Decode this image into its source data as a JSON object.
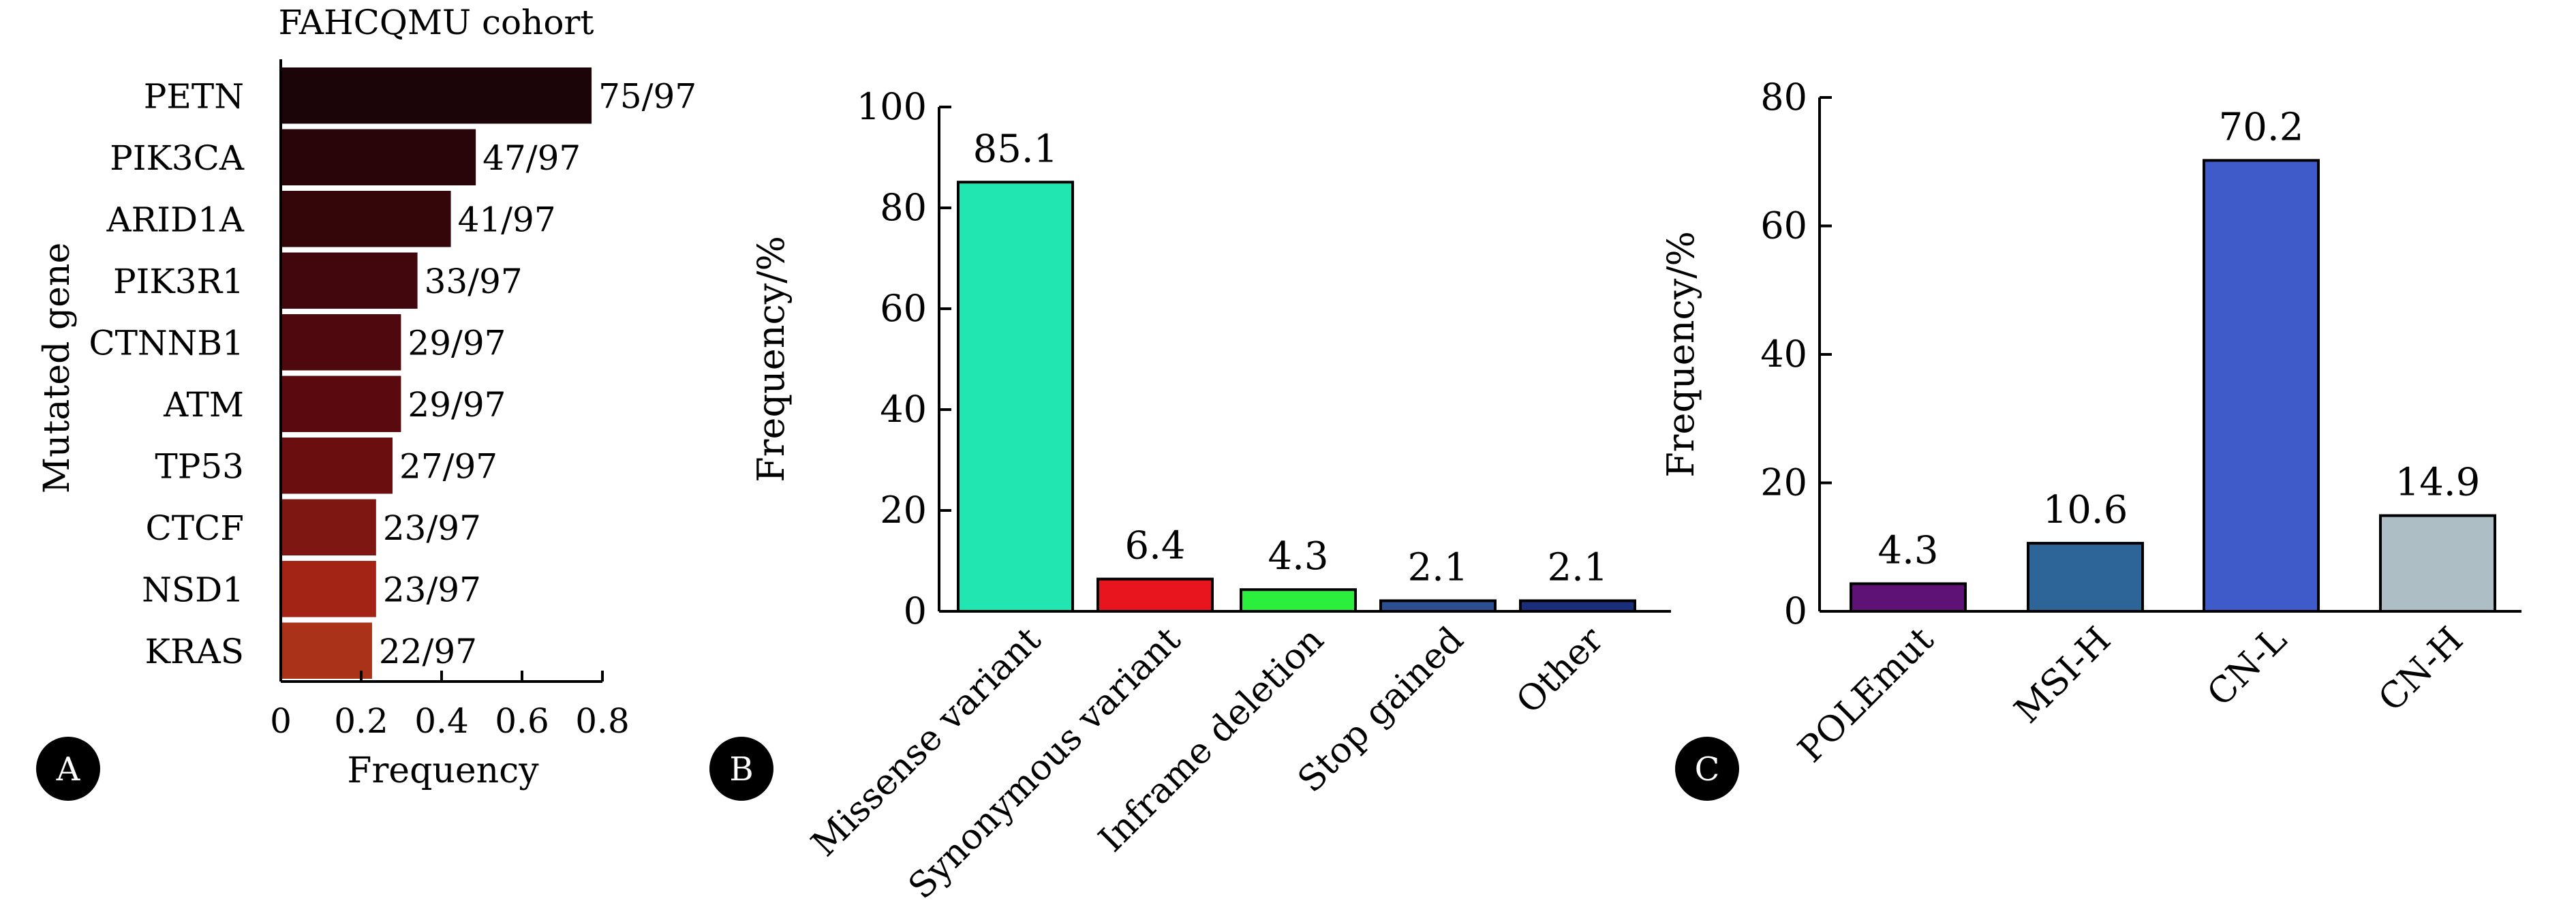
{
  "chart_data": [
    {
      "panel": "A",
      "type": "bar",
      "orientation": "horizontal",
      "title": "FAHCQMU cohort",
      "xlabel": "Frequency",
      "ylabel": "Mutated gene",
      "categories": [
        "PETN",
        "PIK3CA",
        "ARID1A",
        "PIK3R1",
        "CTNNB1",
        "ATM",
        "TP53",
        "CTCF",
        "NSD1",
        "KRAS"
      ],
      "values": [
        0.773,
        0.485,
        0.423,
        0.34,
        0.299,
        0.299,
        0.278,
        0.237,
        0.237,
        0.227
      ],
      "data_labels": [
        "75/97",
        "47/97",
        "41/97",
        "33/97",
        "29/97",
        "29/97",
        "27/97",
        "23/97",
        "23/97",
        "22/97"
      ],
      "colors": [
        "#1c0508",
        "#290509",
        "#34060a",
        "#42070c",
        "#4f080d",
        "#5a090e",
        "#6a0e10",
        "#7e1711",
        "#a32415",
        "#a93218"
      ],
      "xlim": [
        0,
        0.8
      ],
      "xticks": [
        0,
        0.2,
        0.4,
        0.6,
        0.8
      ],
      "xtick_labels": [
        "0",
        "0.2",
        "0.4",
        "0.6",
        "0.8"
      ],
      "grid": false
    },
    {
      "panel": "B",
      "type": "bar",
      "orientation": "vertical",
      "ylabel": "Frequency/%",
      "categories": [
        "Missense variant",
        "Synonymous variant",
        "Inframe deletion",
        "Stop gained",
        "Other"
      ],
      "values": [
        85.1,
        6.4,
        4.3,
        2.1,
        2.1
      ],
      "data_labels": [
        "85.1",
        "6.4",
        "4.3",
        "2.1",
        "2.1"
      ],
      "colors": [
        "#22e6b2",
        "#e8141e",
        "#2bef3c",
        "#2c4f8f",
        "#1a2f7c"
      ],
      "ylim": [
        0,
        100
      ],
      "yticks": [
        0,
        20,
        40,
        60,
        80,
        100
      ],
      "ytick_labels": [
        "0",
        "20",
        "40",
        "60",
        "80",
        "100"
      ],
      "grid": false
    },
    {
      "panel": "C",
      "type": "bar",
      "orientation": "vertical",
      "ylabel": "Frequency/%",
      "categories": [
        "POLEmut",
        "MSI-H",
        "CN-L",
        "CN-H"
      ],
      "values": [
        4.3,
        10.6,
        70.2,
        14.9
      ],
      "data_labels": [
        "4.3",
        "10.6",
        "70.2",
        "14.9"
      ],
      "colors": [
        "#5e1275",
        "#2d6599",
        "#3f5bc9",
        "#adbec5"
      ],
      "ylim": [
        0,
        80
      ],
      "yticks": [
        0,
        20,
        40,
        60,
        80
      ],
      "ytick_labels": [
        "0",
        "20",
        "40",
        "60",
        "80"
      ],
      "grid": false
    }
  ],
  "panel_labels": [
    "A",
    "B",
    "C"
  ]
}
